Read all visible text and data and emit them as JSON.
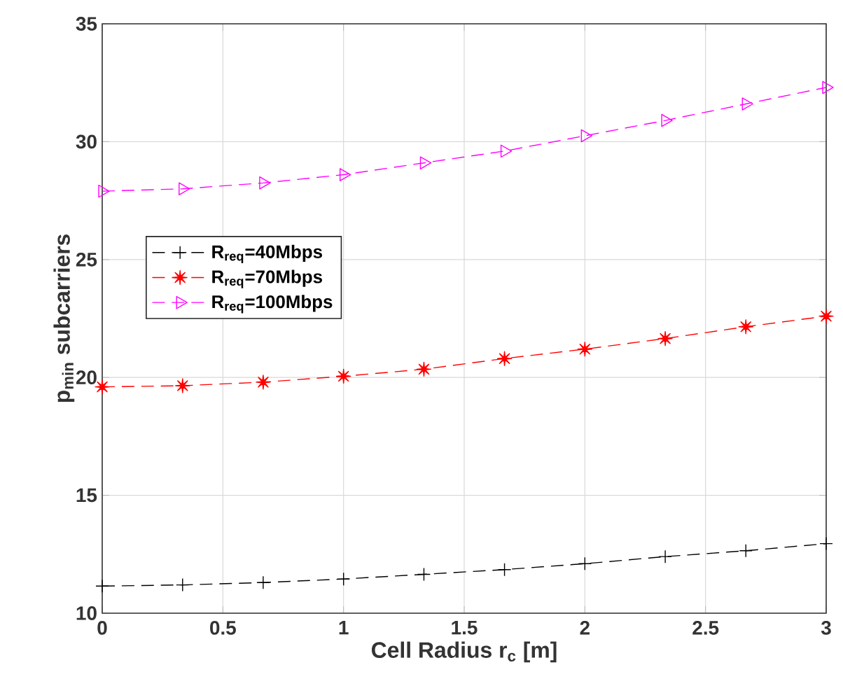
{
  "chart_data": {
    "type": "line",
    "xlabel": "Cell Radius r$_{c}$ [m]",
    "ylabel": "p$_{min}$ subcarriers",
    "x": [
      0,
      0.333,
      0.667,
      1,
      1.333,
      1.667,
      2,
      2.333,
      2.667,
      3
    ],
    "series": [
      {
        "name": "R$_{req}$=40Mbps",
        "color": "#000000",
        "marker": "cross",
        "values": [
          11.15,
          11.2,
          11.3,
          11.45,
          11.65,
          11.85,
          12.1,
          12.4,
          12.65,
          12.95
        ]
      },
      {
        "name": "R$_{req}$=70Mbps",
        "color": "#ff0000",
        "marker": "star",
        "values": [
          19.6,
          19.65,
          19.8,
          20.05,
          20.35,
          20.8,
          21.2,
          21.65,
          22.15,
          22.6
        ]
      },
      {
        "name": "R$_{req}$=100Mbps",
        "color": "#ff00ff",
        "marker": "triangle",
        "values": [
          27.9,
          28.0,
          28.25,
          28.6,
          29.1,
          29.6,
          30.25,
          30.9,
          31.6,
          32.3
        ]
      }
    ],
    "xlim": [
      0,
      3
    ],
    "ylim": [
      10,
      35
    ],
    "xticks": [
      0,
      0.5,
      1,
      1.5,
      2,
      2.5,
      3
    ],
    "yticks": [
      10,
      15,
      20,
      25,
      30,
      35
    ],
    "grid": true,
    "legend": "left",
    "line_style": "dashed"
  }
}
